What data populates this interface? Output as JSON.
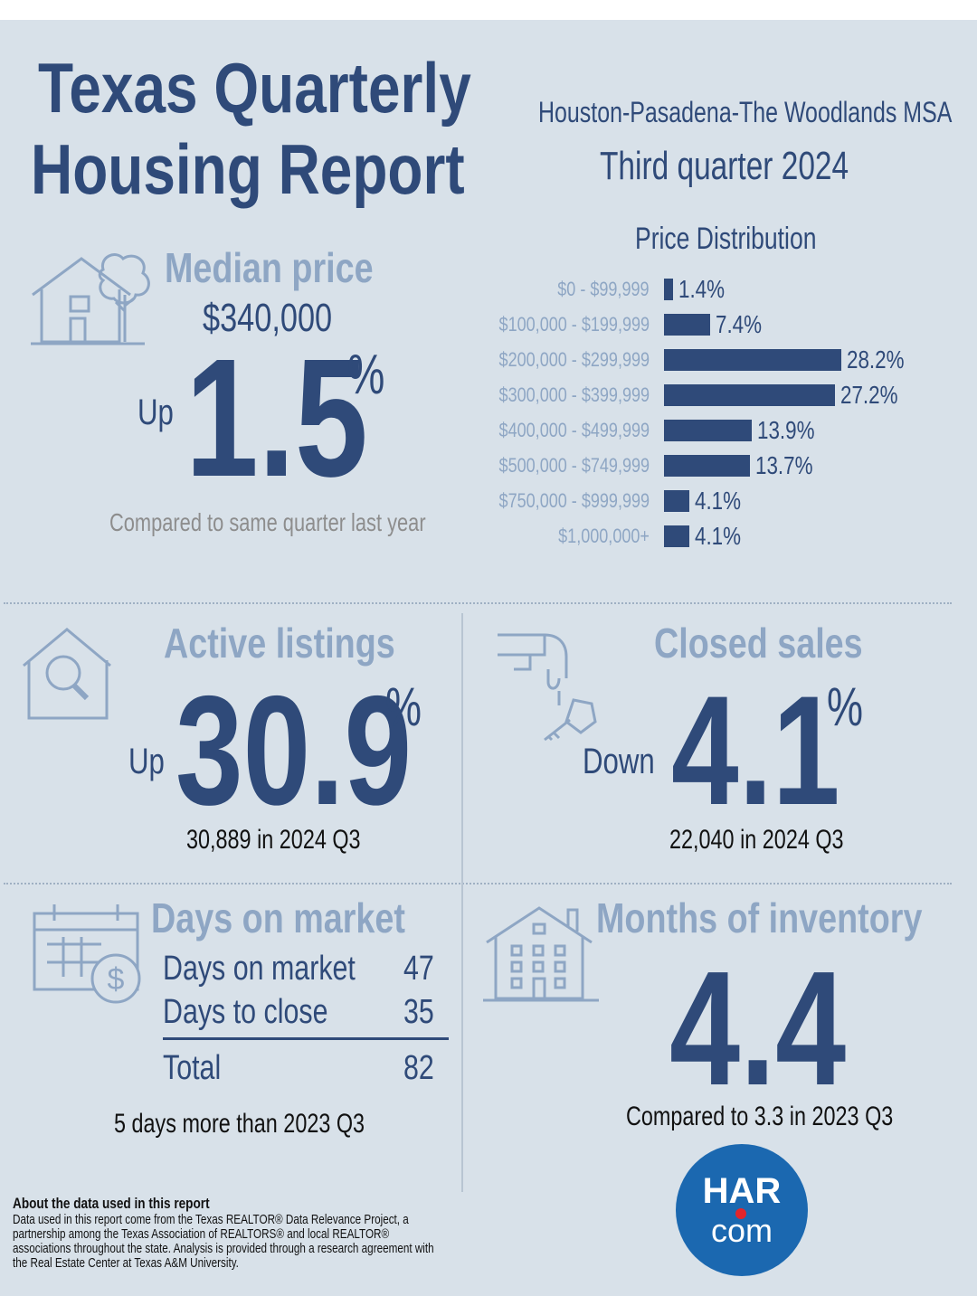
{
  "header": {
    "title_line1": "Texas Quarterly",
    "title_line2": "Housing Report",
    "msa": "Houston-Pasadena-The Woodlands MSA",
    "quarter": "Third quarter 2024"
  },
  "median_price": {
    "title": "Median price",
    "value": "$340,000",
    "direction": "Up",
    "change": "1.5",
    "unit": "%",
    "note": "Compared to same quarter last year"
  },
  "price_distribution": {
    "title": "Price Distribution",
    "chart_data": {
      "type": "bar",
      "orientation": "horizontal",
      "title": "Price Distribution",
      "categories": [
        "$0 - $99,999",
        "$100,000 - $199,999",
        "$200,000 - $299,999",
        "$300,000 - $399,999",
        "$400,000 - $499,999",
        "$500,000 - $749,999",
        "$750,000 - $999,999",
        "$1,000,000+"
      ],
      "values": [
        1.4,
        7.4,
        28.2,
        27.2,
        13.9,
        13.7,
        4.1,
        4.1
      ],
      "value_labels": [
        "1.4%",
        "7.4%",
        "28.2%",
        "27.2%",
        "13.9%",
        "13.7%",
        "4.1%",
        "4.1%"
      ],
      "xlim": [
        0,
        29
      ]
    }
  },
  "active_listings": {
    "title": "Active listings",
    "direction": "Up",
    "change": "30.9",
    "unit": "%",
    "note": "30,889 in 2024 Q3"
  },
  "closed_sales": {
    "title": "Closed sales",
    "direction": "Down",
    "change": "4.1",
    "unit": "%",
    "note": "22,040 in 2024 Q3"
  },
  "days_on_market": {
    "title": "Days on market",
    "rows": [
      {
        "label": "Days on market",
        "value": "47"
      },
      {
        "label": "Days to close",
        "value": "35"
      }
    ],
    "total_label": "Total",
    "total_value": "82",
    "note": "5 days more than 2023 Q3"
  },
  "months_inventory": {
    "title": "Months of inventory",
    "value": "4.4",
    "note": "Compared to 3.3 in 2023 Q3"
  },
  "about": {
    "title": "About the data used in this report",
    "body": "Data used in this report come from the Texas REALTOR® Data Relevance Project, a partnership among the Texas Association of REALTORS® and local REALTOR® associations throughout the state. Analysis is provided through a research agreement with the Real Estate Center at Texas A&M University."
  },
  "logo": {
    "top": "HAR",
    "bottom": "com"
  },
  "colors": {
    "navy": "#2f4a79",
    "light_blue": "#8ea6c4",
    "background": "#d8e1e9",
    "har_blue": "#1b68b0",
    "har_red": "#e3252b"
  }
}
